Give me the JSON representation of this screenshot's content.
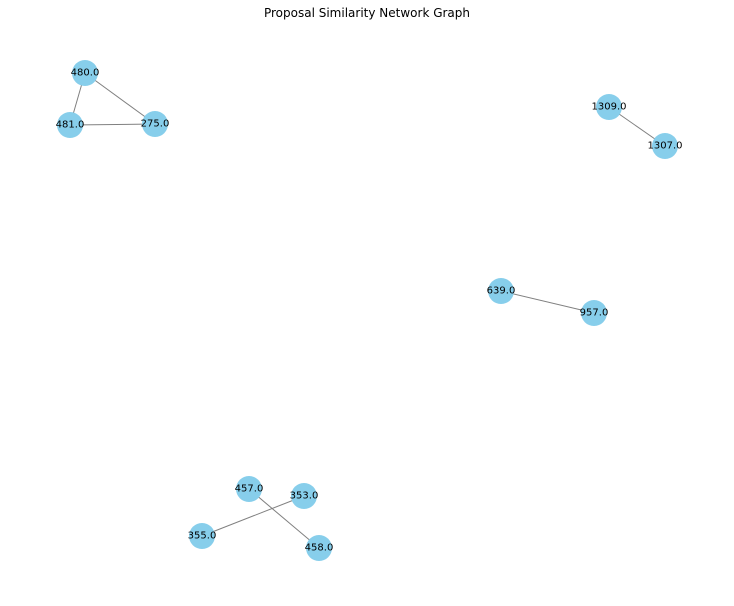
{
  "title": "Proposal Similarity Network Graph",
  "colors": {
    "node_fill": "#87ceeb",
    "edge_stroke": "#808080",
    "label_text": "#000000",
    "background": "#ffffff"
  },
  "nodes": [
    {
      "id": "480.0",
      "label": "480.0"
    },
    {
      "id": "481.0",
      "label": "481.0"
    },
    {
      "id": "275.0",
      "label": "275.0"
    },
    {
      "id": "1309.0",
      "label": "1309.0"
    },
    {
      "id": "1307.0",
      "label": "1307.0"
    },
    {
      "id": "639.0",
      "label": "639.0"
    },
    {
      "id": "957.0",
      "label": "957.0"
    },
    {
      "id": "457.0",
      "label": "457.0"
    },
    {
      "id": "353.0",
      "label": "353.0"
    },
    {
      "id": "355.0",
      "label": "355.0"
    },
    {
      "id": "458.0",
      "label": "458.0"
    }
  ],
  "edges": [
    {
      "source": "480.0",
      "target": "481.0"
    },
    {
      "source": "480.0",
      "target": "275.0"
    },
    {
      "source": "481.0",
      "target": "275.0"
    },
    {
      "source": "1309.0",
      "target": "1307.0"
    },
    {
      "source": "639.0",
      "target": "957.0"
    },
    {
      "source": "457.0",
      "target": "458.0"
    },
    {
      "source": "353.0",
      "target": "355.0"
    }
  ]
}
